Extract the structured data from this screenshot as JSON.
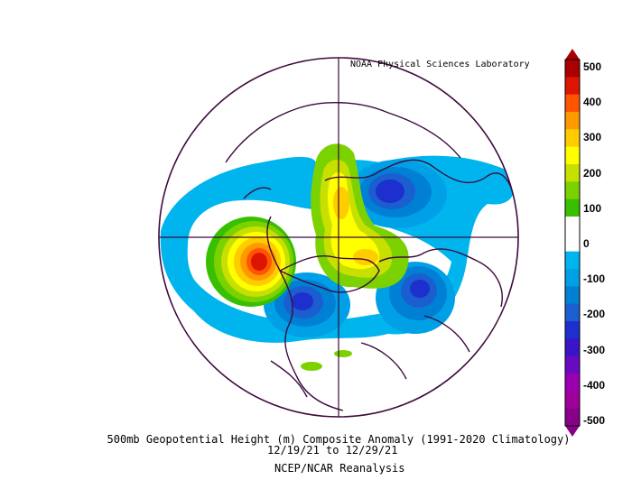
{
  "credit": "NOAA Physical Sciences Laboratory",
  "title": "500mb Geopotential Height (m) Composite Anomaly (1991-2020 Climatology)",
  "date_range": "12/19/21 to 12/29/21",
  "reanalysis": "NCEP/NCAR Reanalysis",
  "projection": "north-polar-stereographic",
  "colorbar": {
    "ticks": [
      "500",
      "400",
      "300",
      "200",
      "100",
      "0",
      "-100",
      "-200",
      "-300",
      "-400",
      "-500"
    ],
    "colors": [
      "#aa0000",
      "#dd1500",
      "#ff5500",
      "#ff9900",
      "#ffcc00",
      "#ffff00",
      "#c8e000",
      "#7cd200",
      "#38c000",
      "#ffffff",
      "#ffffff",
      "#00b4ee",
      "#00a0e6",
      "#0080d4",
      "#1a5ecf",
      "#1d2fcc",
      "#3a14c8",
      "#6a0ac0",
      "#9a00b0",
      "#a0009a",
      "#880088"
    ]
  },
  "anomaly_centers": [
    {
      "name": "north-pacific-ridge",
      "sign": "positive",
      "peak": 500
    },
    {
      "name": "arctic-ridge",
      "sign": "positive",
      "peak": 300
    },
    {
      "name": "greenland-ridge",
      "sign": "positive",
      "peak": 300
    },
    {
      "name": "siberia-trough",
      "sign": "negative",
      "peak": -250
    },
    {
      "name": "western-north-america-trough",
      "sign": "negative",
      "peak": -250
    },
    {
      "name": "north-atlantic-trough",
      "sign": "negative",
      "peak": -250
    }
  ]
}
